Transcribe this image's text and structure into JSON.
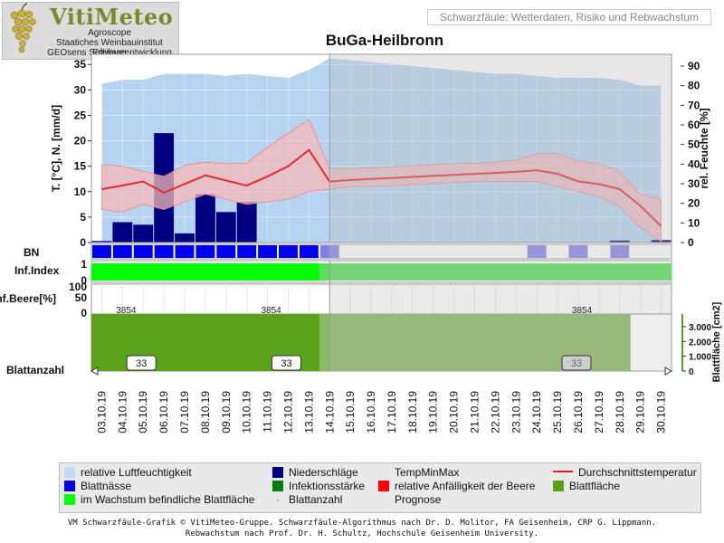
{
  "logo": {
    "name": "VitiMeteo",
    "line1": "Agroscope",
    "line2": "Staatiches Weinbauinstitut Freiburg",
    "line3": "GEOsens Softwareentwicklung"
  },
  "header": {
    "subtitle": "Schwarzfäule: Wetterdaten, Risiko und Rebwachstum",
    "title": "BuGa-Heilbronn"
  },
  "colors": {
    "humidity": "#a9cdf0",
    "rain": "#000080",
    "tempband": "#f6b8b8",
    "meantemp": "#e42a2a",
    "leafwet": "#0000ee",
    "infection": "#00ff00",
    "leafarea": "#5aa21a",
    "forecast_shade": "#c8c8c8"
  },
  "chart_data": {
    "type": "line",
    "x_dates": [
      "03.10.19",
      "04.10.19",
      "05.10.19",
      "06.10.19",
      "07.10.19",
      "08.10.19",
      "09.10.19",
      "10.10.19",
      "11.10.19",
      "12.10.19",
      "13.10.19",
      "14.10.19",
      "15.10.19",
      "16.10.19",
      "17.10.19",
      "18.10.19",
      "19.10.19",
      "20.10.19",
      "21.10.19",
      "22.10.19",
      "23.10.19",
      "24.10.19",
      "25.10.19",
      "26.10.19",
      "27.10.19",
      "28.10.19",
      "29.10.19",
      "30.10.19"
    ],
    "forecast_from": "14.10.19",
    "left_axis": {
      "label": "T. [°C], N. [mm/d]",
      "ticks": [
        0,
        5,
        10,
        15,
        20,
        25,
        30,
        35
      ],
      "range": [
        0,
        37
      ]
    },
    "right_axis": {
      "label": "rel. Feuchte [%]",
      "ticks": [
        0,
        10,
        20,
        30,
        40,
        50,
        60,
        70,
        80,
        90
      ],
      "range": [
        0,
        96
      ]
    },
    "humidity_pct": [
      81,
      83,
      83,
      86,
      86,
      86,
      85,
      86,
      85,
      84,
      88,
      94,
      93,
      92,
      91,
      90,
      89,
      88,
      87,
      86,
      86,
      85,
      84,
      84,
      84,
      83,
      80,
      80
    ],
    "precipitation_mm": [
      0.3,
      4.0,
      3.5,
      21.5,
      1.8,
      9.5,
      6.0,
      8.0,
      0,
      0,
      0,
      0,
      0,
      0,
      0,
      0,
      0,
      0,
      0,
      0,
      0,
      0,
      0,
      0,
      0,
      0.4,
      0,
      0.5
    ],
    "temp_mean": [
      10.5,
      11.2,
      12.0,
      9.8,
      11.5,
      13.2,
      12.2,
      11.2,
      13.0,
      15.0,
      18.2,
      12.0,
      12.3,
      12.5,
      12.7,
      12.9,
      13.1,
      13.3,
      13.5,
      13.7,
      13.9,
      14.2,
      13.5,
      12.0,
      11.5,
      10.5,
      7.2,
      3.2
    ],
    "temp_min": [
      6.5,
      6.0,
      7.5,
      6.5,
      8.0,
      9.5,
      8.5,
      7.5,
      8.0,
      8.5,
      10.0,
      10.5,
      11.0,
      11.0,
      11.2,
      11.4,
      11.6,
      11.8,
      12.0,
      12.0,
      12.0,
      12.0,
      11.0,
      10.0,
      9.0,
      7.0,
      3.0,
      0.2
    ],
    "temp_max": [
      15.3,
      15.0,
      14.0,
      13.0,
      15.2,
      15.8,
      15.5,
      15.6,
      18.8,
      21.5,
      24.2,
      14.5,
      14.5,
      14.7,
      14.9,
      15.1,
      15.3,
      15.5,
      15.6,
      15.8,
      16.2,
      17.5,
      17.5,
      16.0,
      15.5,
      14.0,
      9.5,
      8.5
    ],
    "leaf_wetness_day": [
      1,
      1,
      1,
      1,
      1,
      1,
      1,
      1,
      1,
      1,
      1,
      1,
      0,
      0,
      0,
      0,
      0,
      0,
      0,
      0,
      0,
      1,
      0,
      1,
      0,
      1,
      0,
      0
    ],
    "infection_index": [
      1,
      1,
      1,
      1,
      1,
      1,
      1,
      1,
      1,
      1,
      1,
      1,
      1,
      1,
      1,
      1,
      1,
      1,
      1,
      1,
      1,
      1,
      1,
      1,
      1,
      1,
      1,
      1
    ],
    "leaf_area_cm2": [
      3854,
      3854,
      3854,
      3854,
      3854,
      3854,
      3854,
      3854,
      3854,
      3854,
      3854,
      3854,
      3854,
      3854,
      3854,
      3854,
      3854,
      3854,
      3854,
      3854,
      3854,
      3854,
      3854,
      3854,
      3854,
      3854,
      0,
      0
    ],
    "leaf_area_axis": {
      "label": "Blattfläche [cm2]",
      "ticks": [
        "0",
        "1.000",
        "2.000",
        "3.000"
      ],
      "range": [
        0,
        3854
      ]
    },
    "leaf_area_labels": [
      {
        "date": "04.10.19",
        "text": "3854"
      },
      {
        "date": "11.10.19",
        "text": "3854"
      },
      {
        "date": "26.10.19",
        "text": "3854"
      }
    ],
    "leaf_count_labels": [
      {
        "date": "05.10.19",
        "text": "33",
        "forecast": false
      },
      {
        "date": "12.10.19",
        "text": "33",
        "forecast": false
      },
      {
        "date": "26.10.19",
        "text": "33",
        "forecast": true
      }
    ],
    "row_labels": {
      "bn": "BN",
      "inf_index": "Inf.Index",
      "inf_beere": "Inf.Beere[%]",
      "blattanzahl": "Blattanzahl"
    },
    "inf_index_ticks": [
      "0",
      "1"
    ],
    "inf_beere_ticks": [
      "0",
      "50",
      "100"
    ]
  },
  "legend": {
    "humidity": "relative Luftfeuchtigkeit",
    "rain": "Niederschläge",
    "tempminmax": "TempMinMax",
    "meantemp": "Durchschnittstemperatur",
    "leafwet": "Blattnässe",
    "infection": "Infektionsstärke",
    "berry": "relative Anfälligkeit der Beere",
    "leafarea": "Blattfläche",
    "growing": "im Wachstum befindliche Blattfläche",
    "leafcount": "Blattanzahl",
    "prognose": "Prognose"
  },
  "footer": {
    "line1": "VM Schwarzfäule-Grafik © VitiMeteo-Gruppe. Schwarzfäule-Algorithmus nach Dr. D. Molitor, FA Geisenheim, CRP G. Lippmann.",
    "line2": "Rebwachstum nach Prof. Dr. H. Schultz, Hochschule Geisenheim University."
  }
}
